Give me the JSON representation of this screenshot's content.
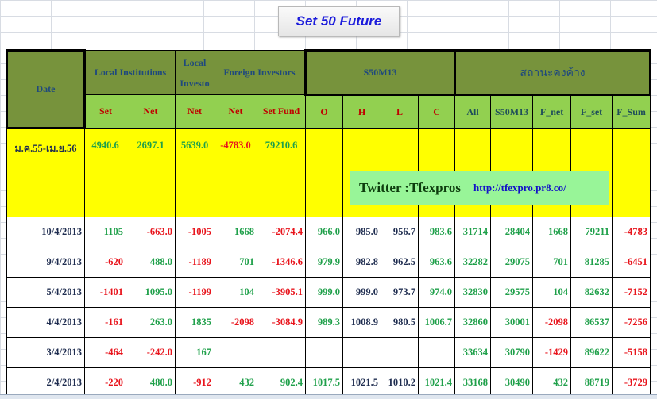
{
  "title": "Set 50  Future",
  "headers": {
    "date": "Date",
    "groups": [
      "Local Institutions",
      "Local Investo",
      "Foreign Investors",
      "S50M13",
      "สถานะคงค้าง"
    ],
    "sub": [
      "Set",
      "Net",
      "Net",
      "Net",
      "Set Fund",
      "O",
      "H",
      "L",
      "C",
      "All",
      "S50M13",
      "F_net",
      "F_set",
      "F_Sum"
    ]
  },
  "summary": {
    "label": "ม.ค.55-เม.ย.56",
    "values": [
      "4940.6",
      "2697.1",
      "5639.0",
      "-4783.0",
      "79210.6"
    ]
  },
  "rows": [
    {
      "date": "10/4/2013",
      "values": [
        "1105",
        "-663.0",
        "-1005",
        "1668",
        "-2074.4",
        "966.0",
        "985.0",
        "956.7",
        "983.6",
        "31714",
        "28404",
        "1668",
        "79211",
        "-4783"
      ]
    },
    {
      "date": "9/4/2013",
      "values": [
        "-620",
        "488.0",
        "-1189",
        "701",
        "-1346.6",
        "979.9",
        "982.8",
        "962.5",
        "963.6",
        "32282",
        "29075",
        "701",
        "81285",
        "-6451"
      ]
    },
    {
      "date": "5/4/2013",
      "values": [
        "-1401",
        "1095.0",
        "-1199",
        "104",
        "-3905.1",
        "999.0",
        "999.0",
        "973.7",
        "974.0",
        "32830",
        "29575",
        "104",
        "82632",
        "-7152"
      ]
    },
    {
      "date": "4/4/2013",
      "values": [
        "-161",
        "263.0",
        "1835",
        "-2098",
        "-3084.9",
        "989.3",
        "1008.9",
        "980.5",
        "1006.7",
        "32860",
        "30001",
        "-2098",
        "86537",
        "-7256"
      ]
    },
    {
      "date": "3/4/2013",
      "values": [
        "-464",
        "-242.0",
        "167",
        "",
        "",
        "",
        "",
        "",
        "",
        "33634",
        "30790",
        "-1429",
        "89622",
        "-5158"
      ]
    },
    {
      "date": "2/4/2013",
      "values": [
        "-220",
        "480.0",
        "-912",
        "432",
        "902.4",
        "1017.5",
        "1021.5",
        "1010.2",
        "1021.4",
        "33168",
        "30490",
        "432",
        "88719",
        "-3729"
      ]
    }
  ],
  "overlay": {
    "twitter": "Twitter :Tfexpros",
    "url": "http://tfexpro.pr8.co/"
  },
  "colors": {
    "positive": "#1fa04a",
    "negative": "#e8141c",
    "header_dark": "#77933c",
    "header_light": "#92d050",
    "summary_bg": "#ffff00"
  }
}
